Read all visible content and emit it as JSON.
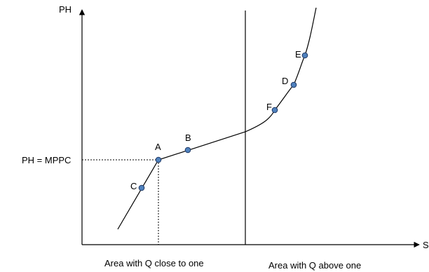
{
  "axes": {
    "y_label": "PH",
    "x_label": "S"
  },
  "reference": {
    "label": "PH = MPPC"
  },
  "points": [
    {
      "name": "A"
    },
    {
      "name": "B"
    },
    {
      "name": "C"
    },
    {
      "name": "D"
    },
    {
      "name": "E"
    },
    {
      "name": "F"
    }
  ],
  "regions": {
    "left": "Area with Q close to one",
    "right": "Area with Q above one"
  },
  "colors": {
    "point_fill": "#4F81BD",
    "point_stroke": "#1F3864",
    "line": "#000000"
  }
}
